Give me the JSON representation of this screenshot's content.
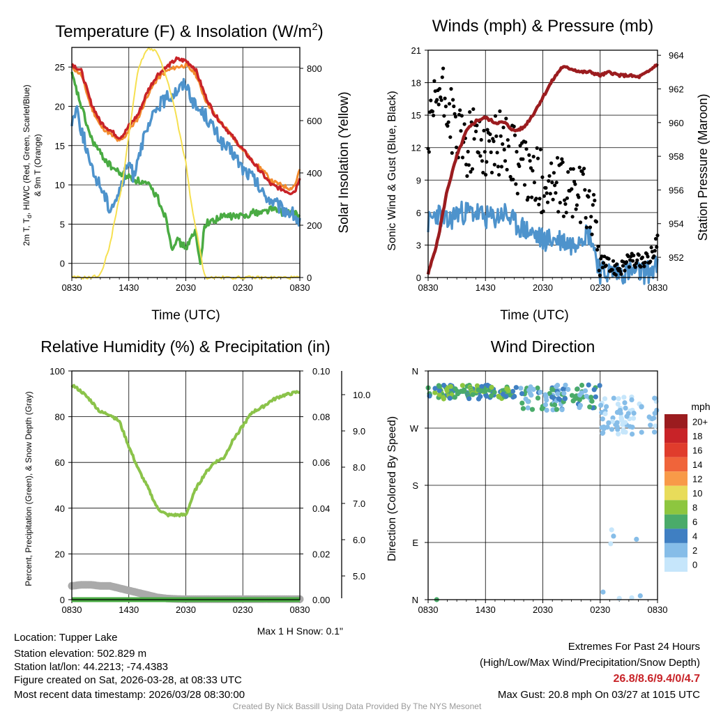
{
  "chart_data": [
    {
      "type": "line",
      "title_main": "Temperature (F) & Insolation (W/m",
      "title_sup": "2",
      "title_end": ")",
      "xlabel": "Time (UTC)",
      "ylabel_line1": "2m T, T",
      "ylabel_sub": "d",
      "ylabel_line1b": ", HI/WC (Red, Green, Scarlet/Blue)",
      "ylabel_line2": "& 9m T (Orange)",
      "ylabel_right": "Solar Insolation (Yellow)",
      "x_tick_labels": [
        "0830",
        "1430",
        "2030",
        "0230",
        "0830"
      ],
      "x_range_hours": [
        0,
        24
      ],
      "y_ticks": [
        0,
        5,
        10,
        15,
        20,
        25
      ],
      "ylim": [
        -1.8,
        27.5
      ],
      "y2_ticks": [
        0,
        200,
        400,
        600,
        800
      ],
      "y2lim": [
        0,
        880
      ],
      "series": [
        {
          "name": "2m T",
          "color": "#c82328",
          "x": [
            0,
            1,
            2,
            3,
            4,
            5,
            5.5,
            6,
            7,
            8,
            9,
            10,
            11,
            12,
            13,
            14,
            15,
            16,
            17,
            18,
            19,
            20,
            21,
            22,
            23,
            23.5,
            24
          ],
          "values": [
            25.4,
            24.5,
            20.5,
            18,
            17,
            16,
            16.5,
            17.5,
            19,
            22,
            24,
            25,
            26,
            25.8,
            24.8,
            21.5,
            19,
            17.5,
            16,
            14.5,
            13,
            11.5,
            10,
            9.5,
            9,
            9.2,
            11
          ]
        },
        {
          "name": "9m T",
          "color": "#f38b2e",
          "x": [
            0,
            1,
            2,
            3,
            4,
            5,
            5.5,
            6,
            7,
            8,
            9,
            10,
            11,
            12,
            13,
            14,
            15,
            16,
            17,
            18,
            19,
            20,
            21,
            22,
            23,
            23.5,
            24
          ],
          "values": [
            25,
            24,
            20,
            17.5,
            16.5,
            15.5,
            16,
            17,
            18.5,
            21.5,
            23.5,
            24.5,
            25,
            25.2,
            24.2,
            21,
            19,
            17.5,
            16,
            14.5,
            13,
            12,
            10.5,
            10,
            9.5,
            10,
            12
          ]
        },
        {
          "name": "HI/WC",
          "color": "#4e93cc",
          "x": [
            0,
            0.5,
            1,
            1.5,
            2,
            3,
            4,
            5,
            6,
            6.5,
            7,
            8,
            9,
            10,
            11,
            12,
            13,
            14,
            15,
            16,
            17,
            18,
            19,
            20,
            21,
            22,
            23,
            23.5,
            24
          ],
          "values": [
            18,
            20,
            17,
            15,
            12,
            10,
            7,
            9,
            13,
            11,
            14,
            17,
            20,
            21,
            22,
            23,
            20,
            19,
            17,
            15,
            14,
            12,
            11,
            9,
            8,
            7,
            6.5,
            6,
            5
          ]
        },
        {
          "name": "Dewpoint",
          "color": "#4aab43",
          "x": [
            0,
            1,
            2,
            3,
            4,
            5,
            6,
            7,
            8,
            9,
            10,
            10.5,
            11,
            12,
            13,
            13.5,
            14,
            15,
            16,
            17,
            18,
            19,
            20,
            21,
            22,
            23,
            24
          ],
          "values": [
            24,
            20,
            16,
            14,
            12.5,
            11.5,
            11,
            10.5,
            10,
            8.5,
            5.5,
            2,
            3,
            2,
            4,
            0,
            5,
            5.5,
            6,
            6,
            6,
            6.5,
            6.5,
            7,
            6.5,
            6.5,
            6
          ]
        },
        {
          "name": "Solar Insolation",
          "color": "#f6e050",
          "axis": "right",
          "x": [
            0,
            2,
            3,
            4,
            4.5,
            5,
            5.5,
            6,
            7,
            8,
            9,
            10,
            11,
            11.5,
            12,
            12.5,
            13,
            14,
            24
          ],
          "values": [
            0,
            0,
            10,
            120,
            220,
            300,
            400,
            550,
            800,
            880,
            860,
            760,
            620,
            520,
            440,
            300,
            200,
            0,
            0
          ]
        }
      ]
    },
    {
      "type": "scatter+line",
      "title": "Winds (mph) & Pressure (mb)",
      "xlabel": "Time (UTC)",
      "ylabel": "Sonic Wind & Gust (Blue, Black)",
      "ylabel_right": "Station Pressure (Maroon)",
      "x_tick_labels": [
        "0830",
        "1430",
        "2030",
        "0230",
        "0830"
      ],
      "x_range_hours": [
        0,
        24
      ],
      "y_ticks": [
        0,
        3,
        6,
        9,
        12,
        15,
        18,
        21
      ],
      "ylim": [
        0,
        21
      ],
      "y2_ticks": [
        952,
        954,
        956,
        958,
        960,
        962,
        964
      ],
      "y2lim": [
        950.8,
        964.3
      ],
      "series": [
        {
          "name": "Pressure",
          "color": "#9b1c1f",
          "axis": "right",
          "x": [
            0,
            1,
            2,
            3,
            4,
            5,
            6,
            7,
            8,
            9,
            10,
            11,
            12,
            13,
            14,
            15,
            16,
            17,
            18,
            19,
            20,
            21,
            22,
            23,
            24
          ],
          "values": [
            951,
            953,
            956,
            958,
            959.5,
            960.1,
            960.3,
            960,
            960,
            959.5,
            959.7,
            960.5,
            961.5,
            962.5,
            963.3,
            963.2,
            963,
            963,
            962.8,
            963,
            962.8,
            962.8,
            962.7,
            963,
            963.5
          ]
        },
        {
          "name": "Sonic Wind",
          "color": "#4e93cc",
          "x": [
            0,
            1,
            2,
            3,
            4,
            5,
            6,
            7,
            8,
            9,
            10,
            11,
            12,
            13,
            14,
            15,
            16,
            17,
            18,
            19,
            20,
            21,
            22,
            23,
            24
          ],
          "values": [
            5,
            6,
            5,
            6,
            6,
            6,
            5.5,
            5.5,
            6,
            5,
            4.5,
            4,
            3.5,
            3.5,
            3.5,
            3,
            4,
            4,
            0.5,
            0.5,
            0.5,
            0.5,
            0.5,
            0.5,
            1
          ]
        },
        {
          "name": "Gust",
          "color": "#000000",
          "x": [
            0,
            1,
            2,
            3,
            4,
            5,
            6,
            7,
            8,
            9,
            10,
            11,
            12,
            13,
            14,
            15,
            16,
            17,
            18,
            19,
            20,
            21,
            22,
            23,
            24
          ],
          "values": [
            12,
            17,
            16,
            13,
            12,
            13,
            12,
            12,
            13,
            11,
            10,
            9,
            9,
            8.5,
            8,
            8,
            7.5,
            7,
            1.5,
            1,
            1,
            1.5,
            1.5,
            1.5,
            3.5
          ]
        }
      ]
    },
    {
      "type": "line",
      "title": "Relative Humidity (%) & Precipitation (in)",
      "ylabel": "Percent, Precipitation (Green), & Snow Depth (Gray)",
      "x_tick_labels": [
        "0830",
        "1430",
        "2030",
        "0230",
        "0830"
      ],
      "x_range_hours": [
        0,
        24
      ],
      "y_ticks": [
        0,
        20,
        40,
        60,
        80,
        100
      ],
      "ylim": [
        0,
        100
      ],
      "y2_ticks": [
        "0.00",
        "0.02",
        "0.04",
        "0.06",
        "0.08",
        "0.10"
      ],
      "y3_ticks": [
        "5.0",
        "6.0",
        "7.0",
        "8.0",
        "9.0",
        "10.0"
      ],
      "snow_note": "Max 1 H Snow: 0.1\"",
      "series": [
        {
          "name": "RH",
          "color": "#8bc34a",
          "x": [
            0,
            1,
            2,
            3,
            4,
            5,
            6,
            7,
            8,
            9,
            10,
            11,
            12,
            13,
            14,
            15,
            16,
            17,
            18,
            19,
            20,
            21,
            22,
            23,
            24
          ],
          "values": [
            94,
            91,
            87,
            82,
            81,
            78,
            67,
            57,
            49,
            40,
            37,
            37,
            37,
            48,
            55,
            60,
            62,
            70,
            76,
            82,
            84,
            87,
            89,
            90,
            91
          ]
        },
        {
          "name": "Snow Depth",
          "color": "#aaaaaa",
          "x": [
            0,
            1,
            2,
            3,
            4,
            5,
            6,
            7,
            8,
            9,
            10,
            11,
            12,
            24
          ],
          "values": [
            6,
            6.5,
            6.5,
            6,
            6,
            5,
            4,
            3,
            2,
            1,
            0.5,
            0.3,
            0.2,
            0.2
          ]
        },
        {
          "name": "Precipitation",
          "color": "#4aab43",
          "x": [
            0,
            24
          ],
          "values": [
            0,
            0
          ]
        }
      ]
    },
    {
      "type": "scatter",
      "title": "Wind Direction",
      "ylabel": "Direction (Colored By Speed)",
      "x_tick_labels": [
        "0830",
        "1430",
        "2030",
        "0230",
        "0830"
      ],
      "y_tick_labels": [
        "N",
        "E",
        "S",
        "W",
        "N"
      ],
      "ylim_degrees": [
        0,
        360
      ],
      "colorbar": {
        "unit": "mph",
        "labels": [
          "20+",
          "18",
          "16",
          "14",
          "12",
          "10",
          "8",
          "6",
          "4",
          "2",
          "0"
        ],
        "colors": [
          "#9b1c1f",
          "#c82328",
          "#e03c2c",
          "#f0643a",
          "#f89a48",
          "#e8dc5a",
          "#8dc63f",
          "#4aab6a",
          "#3f7fc2",
          "#86bde8",
          "#c6e6fb"
        ]
      }
    }
  ],
  "info": {
    "location": "Location: Tupper Lake",
    "elevation": "Station elevation: 502.829 m",
    "latlon": "Station lat/lon: 44.2213; -74.4383",
    "created": "Figure created on Sat, 2026-03-28, at 08:33 UTC",
    "recent": "Most recent data timestamp: 2026/03/28 08:30:00",
    "extremes_title": "Extremes For Past 24 Hours",
    "extremes_sub": "(High/Low/Max Wind/Precipitation/Snow Depth)",
    "extremes_values": "26.8/8.6/9.4/0/4.7",
    "max_gust": "Max Gust: 20.8 mph On 03/27 at 1015 UTC",
    "credit": "Created By Nick Bassill Using Data Provided By The NYS Mesonet"
  }
}
